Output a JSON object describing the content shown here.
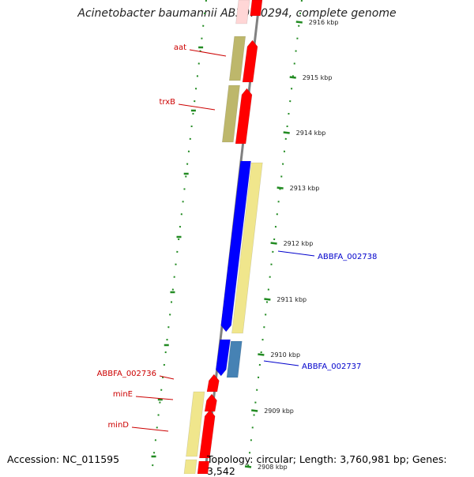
{
  "title": "Acinetobacter baumannii AB307-0294, complete genome",
  "footer": {
    "accession": "Accession: NC_011595",
    "summary": "Topology: circular; Length: 3,760,981 bp; Genes: 3,542"
  },
  "colors": {
    "forward_cds": "#ff0000",
    "reverse_cds": "#0000ff",
    "reverse_cds_light": "#4682b4",
    "orf_band": "#f0e68c",
    "orf_band_dark": "#bdb76b",
    "backbone": "#808080",
    "ruler_tick": "#228b22",
    "forward_label": "#cc0000",
    "reverse_label": "#0000cc"
  },
  "ruler": {
    "labels": [
      "2916 kbp",
      "2915 kbp",
      "2914 kbp",
      "2913 kbp",
      "2912 kbp",
      "2911 kbp",
      "2910 kbp",
      "2909 kbp",
      "2908 kbp"
    ]
  },
  "genes": {
    "forward": [
      "aat",
      "trxB",
      "ABBFA_002736",
      "minE",
      "minD"
    ],
    "reverse": [
      "ABBFA_002738",
      "ABBFA_002737"
    ]
  }
}
